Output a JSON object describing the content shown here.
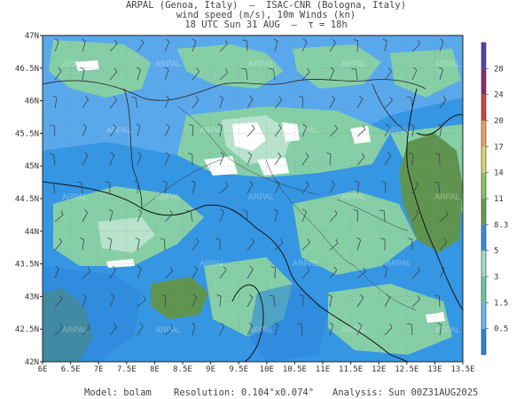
{
  "header": {
    "line1": "ARPAL (Genoa, Italy)  —  ISAC-CNR (Bologna, Italy)",
    "line2": "wind speed (m/s), 10m Winds (kn)",
    "line3": "18 UTC Sun 31 AUG  —  τ = 18h"
  },
  "axes": {
    "x_ticks": [
      "6E",
      "6.5E",
      "7E",
      "7.5E",
      "8E",
      "8.5E",
      "9E",
      "9.5E",
      "10E",
      "10.5E",
      "11E",
      "11.5E",
      "12E",
      "12.5E",
      "13E",
      "13.5E"
    ],
    "y_ticks": [
      "47N",
      "46.5N",
      "46N",
      "45.5N",
      "45N",
      "44.5N",
      "44N",
      "43.5N",
      "43N",
      "42.5N",
      "42N"
    ]
  },
  "colorbar": {
    "labels": [
      "0.5",
      "1.5",
      "3",
      "5",
      "8.3",
      "11",
      "14",
      "17",
      "20",
      "24",
      "28"
    ],
    "colors": [
      "#2a84d8",
      "#6fb4ec",
      "#67c79e",
      "#a3dbc0",
      "#2f8ee0",
      "#6a9a4e",
      "#8fbf60",
      "#d9d66b",
      "#e8a15a",
      "#c9463f",
      "#8a2d6a",
      "#5b3fa8"
    ]
  },
  "watermark": "ARPAL",
  "footer": {
    "model": "Model: bolam",
    "resolution": "Resolution: 0.104°x0.074°",
    "analysis": "Analysis: Sun 00Z31AUG2025"
  }
}
